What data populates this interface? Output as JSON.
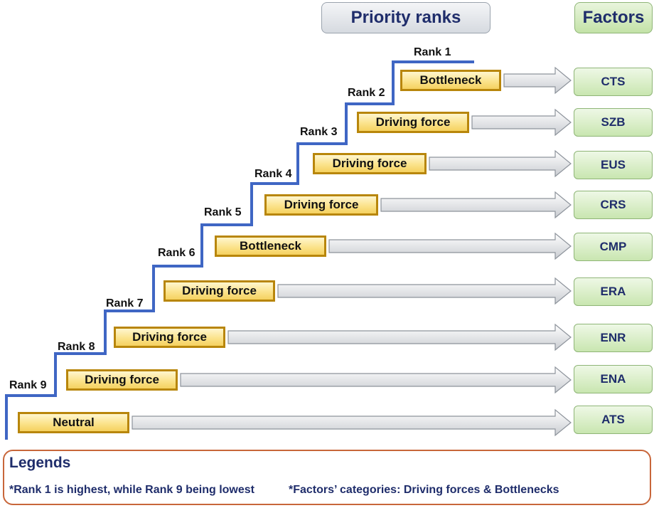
{
  "headers": {
    "priority": "Priority ranks",
    "factors": "Factors"
  },
  "rows": [
    {
      "rank": "Rank 1",
      "category": "Bottleneck",
      "factor": "CTS"
    },
    {
      "rank": "Rank 2",
      "category": "Driving force",
      "factor": "SZB"
    },
    {
      "rank": "Rank 3",
      "category": "Driving force",
      "factor": "EUS"
    },
    {
      "rank": "Rank 4",
      "category": "Driving force",
      "factor": "CRS"
    },
    {
      "rank": "Rank 5",
      "category": "Bottleneck",
      "factor": "CMP"
    },
    {
      "rank": "Rank 6",
      "category": "Driving force",
      "factor": "ERA"
    },
    {
      "rank": "Rank 7",
      "category": "Driving force",
      "factor": "ENR"
    },
    {
      "rank": "Rank 8",
      "category": "Driving force",
      "factor": "ENA"
    },
    {
      "rank": "Rank 9",
      "category": "Neutral",
      "factor": "ATS"
    }
  ],
  "legend": {
    "title": "Legends",
    "note_ranks": "*Rank 1 is highest, while Rank 9 being lowest",
    "note_categories": "*Factors’ categories:  Driving forces & Bottlenecks"
  },
  "colors": {
    "stair": "#3f66c4",
    "category_border": "#b8860b",
    "factor_text": "#1f2d6b",
    "legend_border": "#c8663a"
  }
}
